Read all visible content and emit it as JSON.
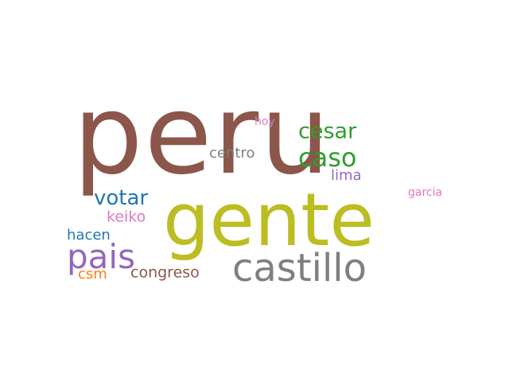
{
  "words": [
    {
      "id": "peru",
      "text": "peru",
      "color": "#8c564b"
    },
    {
      "id": "gente",
      "text": "gente",
      "color": "#bcbd22"
    },
    {
      "id": "castillo",
      "text": "castillo",
      "color": "#7f7f7f"
    },
    {
      "id": "pais",
      "text": "pais",
      "color": "#9467bd"
    },
    {
      "id": "caso",
      "text": "caso",
      "color": "#2ca02c"
    },
    {
      "id": "cesar",
      "text": "cesar",
      "color": "#2ca02c"
    },
    {
      "id": "votar",
      "text": "votar",
      "color": "#1f77b4"
    },
    {
      "id": "keiko",
      "text": "keiko",
      "color": "#e377c2"
    },
    {
      "id": "hacen",
      "text": "hacen",
      "color": "#1f77b4"
    },
    {
      "id": "congreso",
      "text": "congreso",
      "color": "#8c564b"
    },
    {
      "id": "csm",
      "text": "csm",
      "color": "#ff7f0e"
    },
    {
      "id": "centro",
      "text": "centro",
      "color": "#7f7f7f"
    },
    {
      "id": "lima",
      "text": "lima",
      "color": "#9467bd"
    },
    {
      "id": "hoy",
      "text": "hoy",
      "color": "#e377c2"
    },
    {
      "id": "garcia",
      "text": "garcia",
      "color": "#e377c2"
    }
  ]
}
